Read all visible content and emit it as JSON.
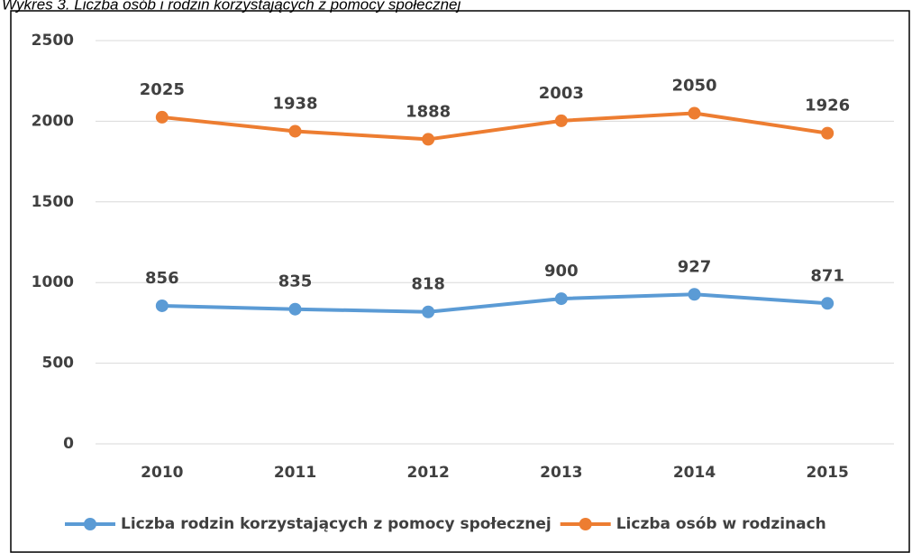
{
  "chart_data": {
    "type": "line",
    "title": "Wykres 3. Liczba osób i rodzin korzystających z pomocy społecznej",
    "categories": [
      "2010",
      "2011",
      "2012",
      "2013",
      "2014",
      "2015"
    ],
    "series": [
      {
        "name": "Liczba rodzin korzystających z pomocy społecznej",
        "color": "#5b9bd5",
        "values": [
          856,
          835,
          818,
          900,
          927,
          871
        ]
      },
      {
        "name": "Liczba osób w rodzinach",
        "color": "#ed7d31",
        "values": [
          2025,
          1938,
          1888,
          2003,
          2050,
          1926
        ]
      }
    ],
    "ylim": [
      0,
      2500
    ],
    "yticks": [
      0,
      500,
      1000,
      1500,
      2000,
      2500
    ],
    "grid": true,
    "legend": "bottom"
  }
}
